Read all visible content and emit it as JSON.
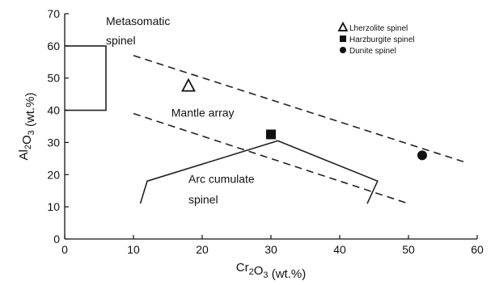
{
  "chart_data": {
    "type": "scatter",
    "xlabel": "Cr2O3 (wt.%)",
    "ylabel": "Al2O3 (wt.%)",
    "xlim": [
      0,
      60
    ],
    "ylim": [
      0,
      70
    ],
    "xticks": [
      0,
      10,
      20,
      30,
      40,
      50,
      60
    ],
    "yticks": [
      0,
      10,
      20,
      30,
      40,
      50,
      60,
      70
    ],
    "grid": false,
    "legend_position": "top-right",
    "series": [
      {
        "name": "Lherzolite spinel",
        "marker": "triangle",
        "x": [
          18
        ],
        "y": [
          47.5
        ]
      },
      {
        "name": "Harzburgite spinel",
        "marker": "square",
        "x": [
          30
        ],
        "y": [
          32.5
        ]
      },
      {
        "name": "Dunite spinel",
        "marker": "circle",
        "x": [
          52
        ],
        "y": [
          26
        ]
      }
    ],
    "fields": [
      {
        "name": "Metasomatic spinel",
        "style": "solid",
        "points": [
          [
            0,
            60
          ],
          [
            6,
            60
          ],
          [
            6,
            40
          ],
          [
            0,
            40
          ]
        ]
      },
      {
        "name": "Mantle array upper boundary",
        "style": "dashed",
        "points": [
          [
            10,
            57
          ],
          [
            58,
            24
          ]
        ]
      },
      {
        "name": "Mantle array lower boundary",
        "style": "dashed",
        "points": [
          [
            10,
            39
          ],
          [
            50,
            11
          ]
        ]
      },
      {
        "name": "Arc cumulate spinel",
        "style": "solid",
        "points": [
          [
            11,
            11
          ],
          [
            12,
            18
          ],
          [
            31,
            30.5
          ],
          [
            45.5,
            18
          ],
          [
            44,
            11
          ]
        ]
      }
    ],
    "annotations": [
      {
        "key": "metasomatic_line1",
        "text": "Metasomatic",
        "x": 6,
        "y": 66.5
      },
      {
        "key": "metasomatic_line2",
        "text": "spinel",
        "x": 6,
        "y": 60.5
      },
      {
        "key": "mantle_array",
        "text": "Mantle array",
        "x": 15.5,
        "y": 38
      },
      {
        "key": "arc_line1",
        "text": "Arc cumulate",
        "x": 18,
        "y": 17.5
      },
      {
        "key": "arc_line2",
        "text": "spinel",
        "x": 18,
        "y": 11
      }
    ]
  }
}
